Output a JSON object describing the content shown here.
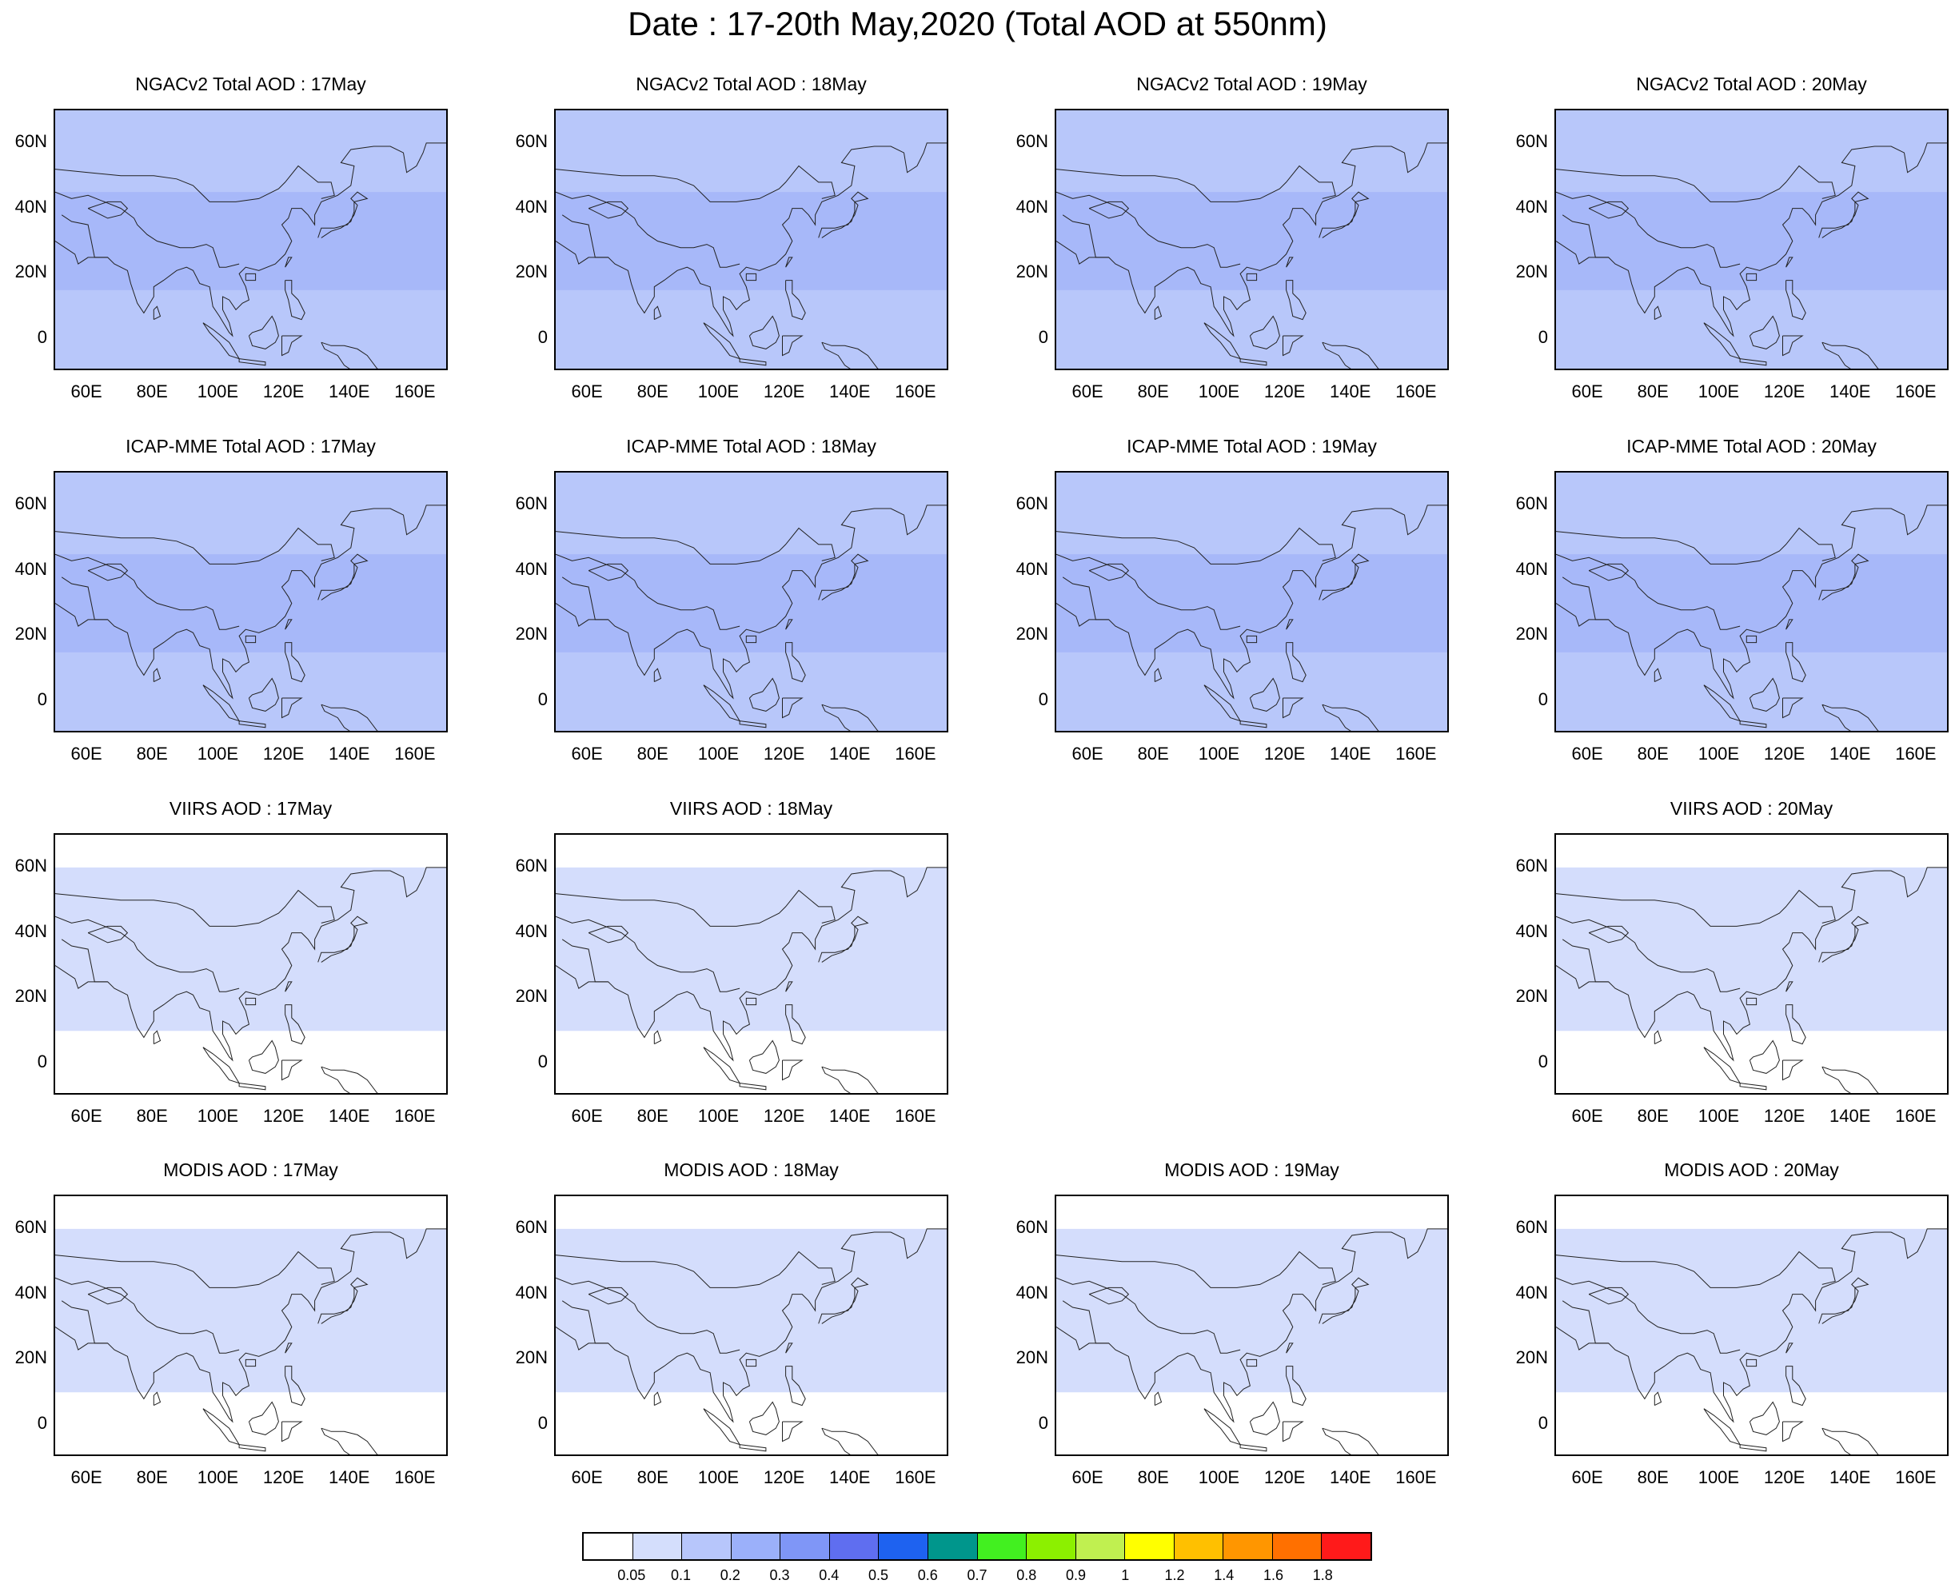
{
  "title": "Date : 17-20th May,2020 (Total AOD at 550nm)",
  "axes": {
    "lat_labels": [
      "60N",
      "40N",
      "20N",
      "0"
    ],
    "lon_labels": [
      "60E",
      "80E",
      "100E",
      "120E",
      "140E",
      "160E"
    ]
  },
  "rows": [
    {
      "type": "model",
      "panels": [
        {
          "title": "NGACv2 Total AOD : 17May"
        },
        {
          "title": "NGACv2 Total AOD : 18May"
        },
        {
          "title": "NGACv2 Total AOD : 19May"
        },
        {
          "title": "NGACv2 Total AOD : 20May"
        }
      ]
    },
    {
      "type": "model",
      "panels": [
        {
          "title": "ICAP-MME Total AOD : 17May"
        },
        {
          "title": "ICAP-MME Total AOD : 18May"
        },
        {
          "title": "ICAP-MME Total AOD : 19May"
        },
        {
          "title": "ICAP-MME Total AOD : 20May"
        }
      ]
    },
    {
      "type": "satellite",
      "panels": [
        {
          "title": "VIIRS AOD : 17May"
        },
        {
          "title": "VIIRS AOD : 18May"
        },
        null,
        {
          "title": "VIIRS AOD : 20May"
        }
      ]
    },
    {
      "type": "satellite",
      "panels": [
        {
          "title": "MODIS AOD : 17May"
        },
        {
          "title": "MODIS AOD : 18May"
        },
        {
          "title": "MODIS AOD : 19May"
        },
        {
          "title": "MODIS AOD : 20May"
        }
      ]
    }
  ],
  "colorbar": {
    "labels": [
      "0.05",
      "0.1",
      "0.2",
      "0.3",
      "0.4",
      "0.5",
      "0.6",
      "0.7",
      "0.8",
      "0.9",
      "1",
      "1.2",
      "1.4",
      "1.6",
      "1.8"
    ],
    "colors": [
      "#ffffff",
      "#d4defc",
      "#b7c6fb",
      "#9bb0fa",
      "#7f96f7",
      "#5f6ef0",
      "#1e62f0",
      "#00968c",
      "#42f020",
      "#8cf000",
      "#c0f050",
      "#ffff00",
      "#ffc000",
      "#ff9600",
      "#ff7000",
      "#ff1a1a"
    ]
  }
}
